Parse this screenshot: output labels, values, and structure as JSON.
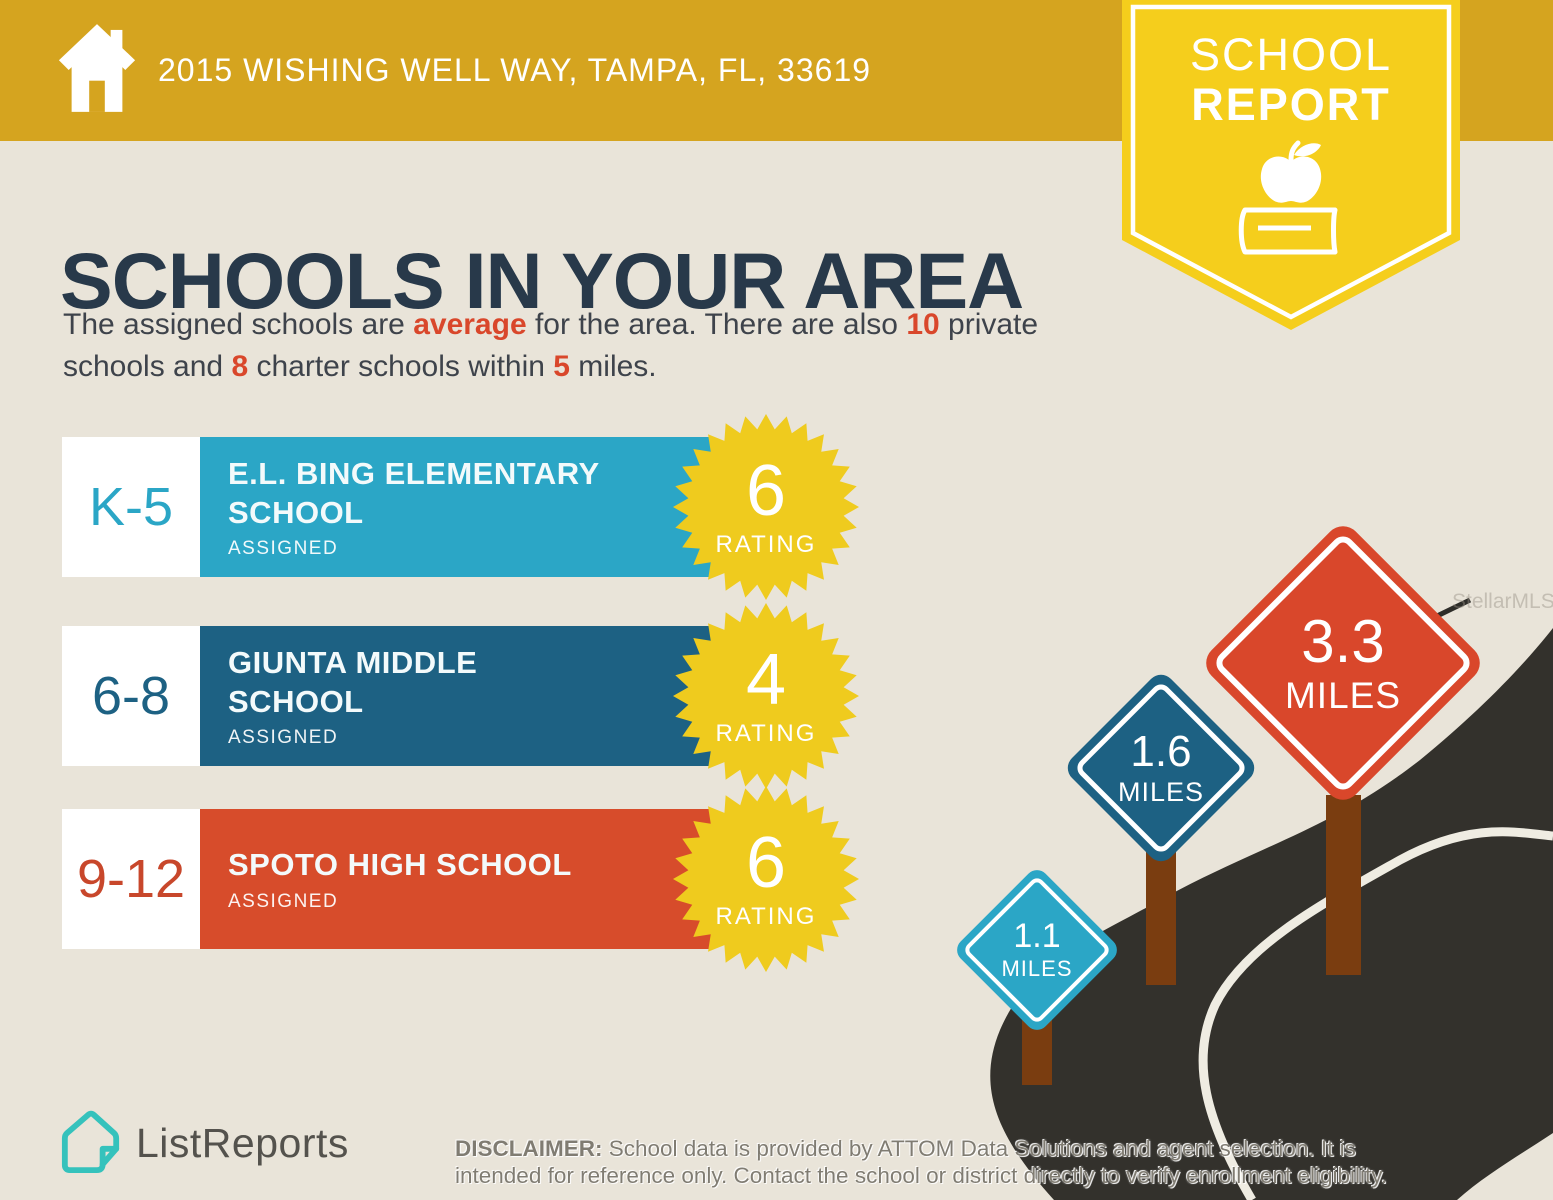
{
  "header": {
    "address": "2015 WISHING WELL WAY, TAMPA, FL, 33619"
  },
  "ribbon": {
    "line1": "SCHOOL",
    "line2": "REPORT"
  },
  "page": {
    "title": "SCHOOLS IN YOUR AREA"
  },
  "intro": {
    "segments": [
      {
        "t": "The assigned schools are ",
        "hl": false
      },
      {
        "t": "average",
        "hl": true
      },
      {
        "t": " for the area. There are also ",
        "hl": false
      },
      {
        "t": "10",
        "hl": true
      },
      {
        "t": " private schools and ",
        "hl": false
      },
      {
        "t": "8",
        "hl": true
      },
      {
        "t": " charter schools within ",
        "hl": false
      },
      {
        "t": "5",
        "hl": true
      },
      {
        "t": " miles.",
        "hl": false
      }
    ]
  },
  "labels": {
    "rating": "RATING"
  },
  "schools": [
    {
      "grades": "K-5",
      "name": "E.L. BING ELEMENTARY\nSCHOOL",
      "status": "ASSIGNED",
      "rating": "6",
      "color": "#2BA6C6"
    },
    {
      "grades": "6-8",
      "name": "GIUNTA MIDDLE\nSCHOOL",
      "status": "ASSIGNED",
      "rating": "4",
      "color": "#1D6183"
    },
    {
      "grades": "9-12",
      "name": "SPOTO HIGH SCHOOL",
      "status": "ASSIGNED",
      "rating": "6",
      "color": "#D74C2B"
    }
  ],
  "distance_signs": [
    {
      "value": "1.1",
      "unit": "MILES",
      "color": "#2BA6C6"
    },
    {
      "value": "1.6",
      "unit": "MILES",
      "color": "#1D6183"
    },
    {
      "value": "3.3",
      "unit": "MILES",
      "color": "#D9472B"
    }
  ],
  "watermark": "StellarMLS",
  "footer": {
    "brand": "ListReports",
    "disclaimer_label": "DISCLAIMER:",
    "disclaimer_text": " School data is provided by ATTOM Data Solutions and agent selection. It is intended for reference only. Contact the school or district directly to verify enrollment eligibility."
  },
  "icons": [
    "home-icon",
    "apple-book-icon",
    "house-page-icon"
  ],
  "colors": {
    "banner_gold": "#D5A41F",
    "ribbon_yellow": "#F5CE1C",
    "badge_yellow": "#EFCB1E",
    "background_beige": "#E9E4D9",
    "title_navy": "#28394A",
    "body_text": "#3E434B",
    "accent_red": "#D9472B",
    "elementary_teal": "#2BA6C6",
    "middle_blue": "#1D6183",
    "high_red": "#D74C2B",
    "road_dark": "#33312C",
    "road_line": "#EFECE2",
    "post_brown": "#7A3D10",
    "logo_teal": "#35C2BC"
  }
}
